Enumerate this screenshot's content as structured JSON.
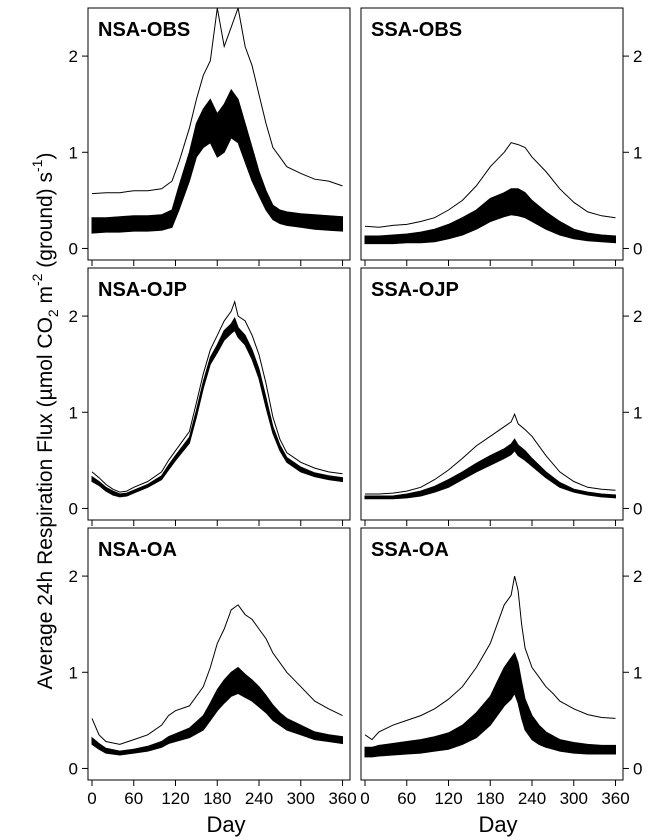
{
  "chart_data": {
    "type": "line",
    "ylabel": {
      "pre": "Average 24h Respiration Flux (µmol CO",
      "sub1": "2",
      "mid1": " m",
      "sup1": "-2",
      "mid2": " (ground) s",
      "sup2": "-1",
      "post": ")"
    },
    "xlabel": "Day",
    "x_ticks": [
      "0",
      "60",
      "120",
      "180",
      "240",
      "300",
      "360"
    ],
    "y_ticks": [
      "0",
      "1",
      "2"
    ],
    "xlim": [
      0,
      365
    ],
    "ylim": [
      -0.12,
      2.5
    ],
    "grid": false,
    "legend": "none",
    "panels": [
      {
        "title": "NSA-OBS",
        "series": [
          {
            "style": "thin",
            "x": [
              0,
              20,
              40,
              60,
              80,
              100,
              115,
              125,
              140,
              150,
              160,
              170,
              180,
              190,
              200,
              210,
              220,
              230,
              240,
              250,
              260,
              270,
              280,
              300,
              320,
              340,
              360
            ],
            "y": [
              0.57,
              0.58,
              0.58,
              0.6,
              0.6,
              0.62,
              0.7,
              0.9,
              1.25,
              1.55,
              1.8,
              1.95,
              2.5,
              2.1,
              2.3,
              2.5,
              2.1,
              1.9,
              1.6,
              1.3,
              1.05,
              0.95,
              0.85,
              0.78,
              0.72,
              0.7,
              0.65
            ]
          },
          {
            "style": "band",
            "x": [
              0,
              20,
              40,
              60,
              80,
              100,
              115,
              125,
              140,
              150,
              160,
              170,
              180,
              190,
              200,
              210,
              220,
              230,
              240,
              250,
              260,
              270,
              280,
              300,
              320,
              340,
              360
            ],
            "lo": [
              0.16,
              0.17,
              0.17,
              0.18,
              0.18,
              0.19,
              0.22,
              0.4,
              0.7,
              0.95,
              1.05,
              1.1,
              0.95,
              1.0,
              1.15,
              1.1,
              0.9,
              0.7,
              0.55,
              0.4,
              0.3,
              0.26,
              0.24,
              0.22,
              0.2,
              0.19,
              0.18
            ],
            "hi": [
              0.32,
              0.32,
              0.33,
              0.34,
              0.34,
              0.35,
              0.4,
              0.65,
              1.0,
              1.3,
              1.45,
              1.55,
              1.4,
              1.5,
              1.65,
              1.55,
              1.3,
              1.05,
              0.8,
              0.6,
              0.45,
              0.4,
              0.38,
              0.36,
              0.35,
              0.34,
              0.33
            ]
          }
        ]
      },
      {
        "title": "SSA-OBS",
        "series": [
          {
            "style": "thin",
            "x": [
              0,
              20,
              40,
              60,
              80,
              100,
              120,
              140,
              160,
              180,
              200,
              210,
              220,
              230,
              240,
              260,
              280,
              300,
              320,
              340,
              360
            ],
            "y": [
              0.23,
              0.22,
              0.24,
              0.25,
              0.28,
              0.32,
              0.4,
              0.5,
              0.65,
              0.85,
              1.0,
              1.1,
              1.08,
              1.05,
              0.95,
              0.8,
              0.62,
              0.48,
              0.38,
              0.34,
              0.32
            ]
          },
          {
            "style": "band",
            "x": [
              0,
              20,
              40,
              60,
              80,
              100,
              120,
              140,
              160,
              180,
              200,
              210,
              220,
              230,
              240,
              260,
              280,
              300,
              320,
              340,
              360
            ],
            "lo": [
              0.05,
              0.05,
              0.05,
              0.06,
              0.06,
              0.07,
              0.1,
              0.14,
              0.2,
              0.28,
              0.33,
              0.35,
              0.34,
              0.32,
              0.28,
              0.2,
              0.14,
              0.1,
              0.08,
              0.07,
              0.06
            ],
            "hi": [
              0.13,
              0.13,
              0.14,
              0.15,
              0.17,
              0.2,
              0.25,
              0.32,
              0.4,
              0.52,
              0.58,
              0.62,
              0.62,
              0.58,
              0.5,
              0.38,
              0.28,
              0.2,
              0.16,
              0.14,
              0.13
            ]
          }
        ]
      },
      {
        "title": "NSA-OJP",
        "series": [
          {
            "style": "thin",
            "x": [
              0,
              10,
              20,
              30,
              40,
              50,
              60,
              80,
              100,
              110,
              120,
              140,
              150,
              160,
              170,
              180,
              190,
              200,
              205,
              210,
              220,
              230,
              240,
              250,
              260,
              270,
              280,
              300,
              320,
              340,
              360
            ],
            "y": [
              0.38,
              0.32,
              0.25,
              0.2,
              0.17,
              0.18,
              0.22,
              0.28,
              0.38,
              0.5,
              0.6,
              0.8,
              1.1,
              1.4,
              1.65,
              1.8,
              1.95,
              2.05,
              2.15,
              2.0,
              1.95,
              1.8,
              1.6,
              1.3,
              0.95,
              0.72,
              0.58,
              0.48,
              0.42,
              0.38,
              0.36
            ]
          },
          {
            "style": "band",
            "x": [
              0,
              10,
              20,
              30,
              40,
              50,
              60,
              80,
              100,
              110,
              120,
              140,
              150,
              160,
              170,
              180,
              190,
              200,
              205,
              210,
              220,
              230,
              240,
              250,
              260,
              270,
              280,
              300,
              320,
              340,
              360
            ],
            "lo": [
              0.28,
              0.24,
              0.18,
              0.14,
              0.12,
              0.13,
              0.16,
              0.22,
              0.3,
              0.4,
              0.5,
              0.68,
              0.95,
              1.25,
              1.5,
              1.62,
              1.75,
              1.82,
              1.85,
              1.78,
              1.7,
              1.55,
              1.35,
              1.05,
              0.78,
              0.6,
              0.48,
              0.38,
              0.33,
              0.3,
              0.28
            ],
            "hi": [
              0.33,
              0.28,
              0.22,
              0.18,
              0.15,
              0.16,
              0.19,
              0.25,
              0.34,
              0.45,
              0.55,
              0.74,
              1.02,
              1.32,
              1.57,
              1.7,
              1.85,
              1.92,
              1.98,
              1.88,
              1.8,
              1.65,
              1.45,
              1.15,
              0.85,
              0.66,
              0.53,
              0.43,
              0.37,
              0.34,
              0.32
            ]
          }
        ]
      },
      {
        "title": "SSA-OJP",
        "series": [
          {
            "style": "thin",
            "x": [
              0,
              20,
              40,
              60,
              80,
              100,
              120,
              140,
              160,
              180,
              200,
              210,
              215,
              220,
              230,
              240,
              260,
              280,
              300,
              320,
              340,
              360
            ],
            "y": [
              0.15,
              0.15,
              0.16,
              0.18,
              0.22,
              0.3,
              0.4,
              0.52,
              0.65,
              0.75,
              0.85,
              0.9,
              0.98,
              0.88,
              0.82,
              0.75,
              0.55,
              0.38,
              0.28,
              0.22,
              0.2,
              0.19
            ]
          },
          {
            "style": "band",
            "x": [
              0,
              20,
              40,
              60,
              80,
              100,
              120,
              140,
              160,
              180,
              200,
              210,
              215,
              220,
              230,
              240,
              260,
              280,
              300,
              320,
              340,
              360
            ],
            "lo": [
              0.1,
              0.1,
              0.1,
              0.11,
              0.13,
              0.17,
              0.22,
              0.3,
              0.38,
              0.45,
              0.52,
              0.56,
              0.6,
              0.55,
              0.5,
              0.44,
              0.32,
              0.22,
              0.17,
              0.14,
              0.12,
              0.11
            ],
            "hi": [
              0.13,
              0.13,
              0.13,
              0.15,
              0.18,
              0.23,
              0.3,
              0.38,
              0.47,
              0.55,
              0.62,
              0.67,
              0.72,
              0.66,
              0.6,
              0.52,
              0.38,
              0.27,
              0.2,
              0.17,
              0.15,
              0.14
            ]
          }
        ]
      },
      {
        "title": "NSA-OA",
        "series": [
          {
            "style": "thin",
            "x": [
              0,
              10,
              20,
              40,
              60,
              80,
              100,
              110,
              120,
              140,
              160,
              170,
              180,
              190,
              200,
              210,
              220,
              230,
              240,
              250,
              260,
              270,
              280,
              300,
              320,
              340,
              360
            ],
            "y": [
              0.52,
              0.35,
              0.28,
              0.25,
              0.3,
              0.35,
              0.45,
              0.55,
              0.6,
              0.65,
              0.85,
              1.05,
              1.3,
              1.45,
              1.65,
              1.7,
              1.6,
              1.55,
              1.45,
              1.35,
              1.2,
              1.1,
              1.0,
              0.85,
              0.7,
              0.62,
              0.55
            ]
          },
          {
            "style": "band",
            "x": [
              0,
              10,
              20,
              40,
              60,
              80,
              100,
              110,
              120,
              140,
              160,
              170,
              180,
              190,
              200,
              210,
              220,
              230,
              240,
              250,
              260,
              270,
              280,
              300,
              320,
              340,
              360
            ],
            "lo": [
              0.25,
              0.2,
              0.16,
              0.14,
              0.16,
              0.18,
              0.22,
              0.26,
              0.28,
              0.32,
              0.4,
              0.5,
              0.6,
              0.68,
              0.75,
              0.78,
              0.74,
              0.7,
              0.64,
              0.58,
              0.5,
              0.45,
              0.4,
              0.35,
              0.3,
              0.28,
              0.26
            ],
            "hi": [
              0.32,
              0.26,
              0.21,
              0.18,
              0.2,
              0.23,
              0.28,
              0.33,
              0.36,
              0.42,
              0.55,
              0.68,
              0.82,
              0.92,
              1.0,
              1.05,
              0.98,
              0.92,
              0.85,
              0.76,
              0.66,
              0.58,
              0.52,
              0.45,
              0.38,
              0.35,
              0.33
            ]
          }
        ]
      },
      {
        "title": "SSA-OA",
        "series": [
          {
            "style": "thin",
            "x": [
              0,
              10,
              20,
              40,
              60,
              80,
              100,
              120,
              140,
              160,
              180,
              190,
              200,
              210,
              215,
              220,
              225,
              230,
              240,
              250,
              260,
              270,
              280,
              300,
              320,
              340,
              360
            ],
            "y": [
              0.35,
              0.3,
              0.38,
              0.45,
              0.5,
              0.55,
              0.62,
              0.72,
              0.85,
              1.05,
              1.3,
              1.5,
              1.7,
              1.8,
              2.0,
              1.85,
              1.5,
              1.25,
              1.05,
              0.95,
              0.85,
              0.78,
              0.7,
              0.62,
              0.56,
              0.53,
              0.52
            ]
          },
          {
            "style": "band",
            "x": [
              0,
              10,
              20,
              40,
              60,
              80,
              100,
              120,
              140,
              160,
              180,
              190,
              200,
              210,
              215,
              220,
              225,
              230,
              240,
              250,
              260,
              270,
              280,
              300,
              320,
              340,
              360
            ],
            "lo": [
              0.12,
              0.12,
              0.13,
              0.14,
              0.15,
              0.16,
              0.18,
              0.2,
              0.25,
              0.32,
              0.45,
              0.55,
              0.65,
              0.72,
              0.78,
              0.68,
              0.52,
              0.4,
              0.3,
              0.25,
              0.22,
              0.2,
              0.18,
              0.16,
              0.15,
              0.15,
              0.15
            ],
            "hi": [
              0.22,
              0.22,
              0.24,
              0.26,
              0.28,
              0.3,
              0.33,
              0.37,
              0.45,
              0.58,
              0.75,
              0.9,
              1.05,
              1.15,
              1.2,
              1.1,
              0.9,
              0.72,
              0.55,
              0.45,
              0.38,
              0.34,
              0.3,
              0.27,
              0.25,
              0.24,
              0.24
            ]
          }
        ]
      }
    ]
  }
}
